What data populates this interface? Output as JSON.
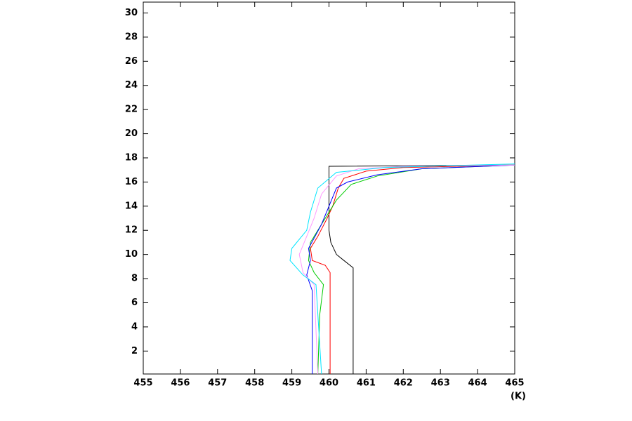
{
  "chart_data": {
    "type": "line",
    "x_label": "(K)",
    "xlim": [
      455,
      465
    ],
    "xticks": [
      455,
      456,
      457,
      458,
      459,
      460,
      461,
      462,
      463,
      464,
      465
    ],
    "ylim": [
      0.1,
      30.9
    ],
    "yticks": [
      2,
      4,
      6,
      8,
      10,
      12,
      14,
      16,
      18,
      20,
      22,
      24,
      26,
      28,
      30
    ],
    "series": [
      {
        "color": "#000000",
        "x": [
          460.65,
          460.65,
          460.4,
          460.2,
          460.05,
          460.0,
          460.0,
          460.0,
          465
        ],
        "y": [
          0.1,
          8.9,
          9.5,
          10,
          11,
          12,
          17.3,
          17.3,
          17.4
        ]
      },
      {
        "color": "#ff0000",
        "x": [
          460.03,
          460.03,
          459.9,
          459.55,
          459.5,
          459.7,
          459.95,
          460.1,
          460.25,
          460.4,
          461,
          462,
          465
        ],
        "y": [
          0.1,
          8.5,
          9.1,
          9.5,
          10.5,
          11.5,
          13,
          14,
          15.5,
          16.3,
          16.9,
          17.2,
          17.4
        ]
      },
      {
        "color": "#00cc00",
        "x": [
          459.7,
          459.75,
          459.85,
          459.6,
          459.45,
          459.5,
          459.9,
          460.2,
          460.6,
          461.3,
          462.5,
          465
        ],
        "y": [
          0.1,
          5,
          7.5,
          8.5,
          9.5,
          11,
          13,
          14.5,
          15.8,
          16.5,
          17.1,
          17.4
        ]
      },
      {
        "color": "#0000ff",
        "x": [
          459.55,
          459.55,
          459.4,
          459.5,
          459.45,
          459.8,
          460.0,
          460.2,
          460.5,
          461.3,
          462.5,
          465
        ],
        "y": [
          0.1,
          7,
          8.3,
          9.5,
          10.5,
          12.5,
          14,
          15.5,
          16,
          16.6,
          17.1,
          17.4
        ]
      },
      {
        "color": "#ff99ff",
        "x": [
          459.7,
          459.6,
          459.3,
          459.2,
          459.4,
          459.6,
          459.8,
          460.2,
          460.8,
          462,
          465
        ],
        "y": [
          0.1,
          7.5,
          8.5,
          10,
          11.5,
          13,
          15,
          16.5,
          17.1,
          17.3,
          17.4
        ]
      },
      {
        "color": "#00e5ff",
        "x": [
          459.8,
          459.65,
          459.3,
          458.95,
          459.0,
          459.4,
          459.5,
          459.7,
          460.2,
          461.5,
          465
        ],
        "y": [
          0.1,
          7.5,
          8.3,
          9.5,
          10.5,
          12,
          13.5,
          15.5,
          16.8,
          17.2,
          17.5
        ]
      }
    ]
  }
}
